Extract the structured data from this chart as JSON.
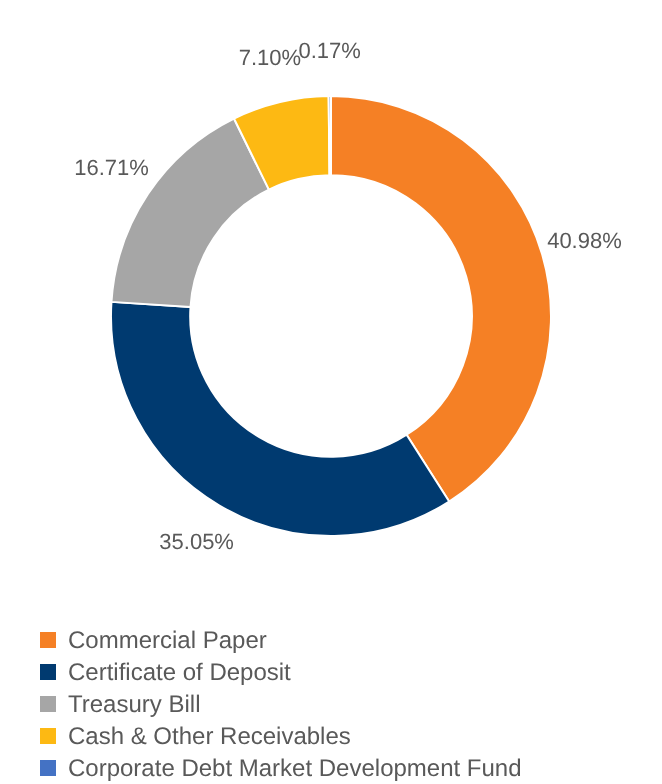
{
  "chart_data": {
    "type": "donut",
    "categories": [
      "Commercial Paper",
      "Certificate of Deposit",
      "Treasury Bill",
      "Cash & Other Receivables",
      "Corporate Debt Market Development Fund"
    ],
    "values": [
      40.98,
      35.05,
      16.71,
      7.1,
      0.17
    ],
    "colors": [
      "#f58025",
      "#003a70",
      "#a6a6a6",
      "#fdb913",
      "#4472c4"
    ],
    "value_labels": [
      "40.98%",
      "35.05%",
      "16.71%",
      "7.10%",
      "0.17%"
    ],
    "legend": "bottom"
  }
}
